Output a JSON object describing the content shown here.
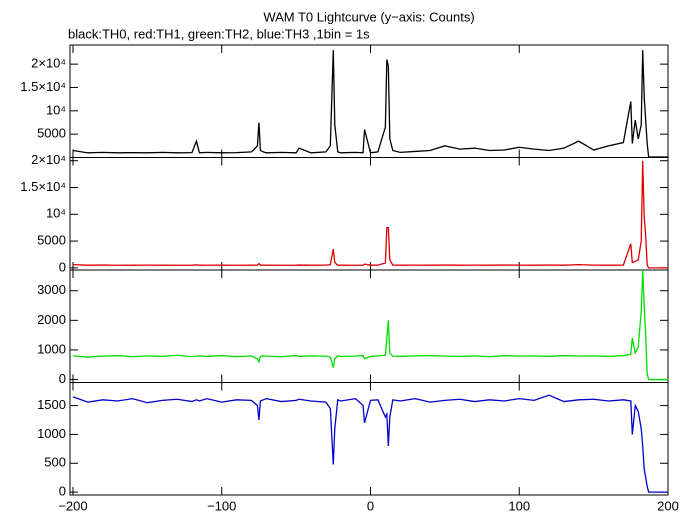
{
  "chart_data": [
    {
      "type": "line",
      "title": "WAM T0 Lightcurve (y−axis: Counts)",
      "subtitle": "black:TH0, red:TH1, green:TH2, blue:TH3 ,1bin = 1s",
      "series": [
        {
          "name": "TH0",
          "color": "#000000",
          "x": [
            -200,
            -190,
            -180,
            -170,
            -160,
            -150,
            -140,
            -130,
            -120,
            -117,
            -115,
            -110,
            -100,
            -90,
            -80,
            -76,
            -75,
            -74,
            -72,
            -70,
            -60,
            -50,
            -48,
            -40,
            -30,
            -27,
            -25,
            -24,
            -22,
            -20,
            -10,
            -5,
            -4,
            0,
            5,
            10,
            11,
            12,
            13,
            15,
            20,
            30,
            40,
            50,
            60,
            70,
            80,
            90,
            100,
            110,
            120,
            130,
            140,
            150,
            160,
            170,
            175,
            176,
            178,
            180,
            182,
            183,
            184,
            185,
            186,
            187,
            190,
            200
          ],
          "values": [
            1500,
            1000,
            1100,
            1000,
            1050,
            1000,
            1100,
            1000,
            1050,
            3500,
            1000,
            1100,
            1000,
            1050,
            1200,
            2500,
            7500,
            1500,
            1200,
            1000,
            1100,
            1000,
            2000,
            1000,
            1200,
            2500,
            23000,
            7000,
            1200,
            1000,
            1100,
            1000,
            6000,
            1000,
            1200,
            6500,
            21000,
            19500,
            4000,
            1500,
            1100,
            1300,
            1500,
            2500,
            1800,
            2000,
            1500,
            1600,
            2200,
            1800,
            1500,
            2000,
            3500,
            1600,
            2500,
            3200,
            12000,
            3000,
            8000,
            4000,
            7000,
            23000,
            13000,
            8000,
            3000,
            100,
            100,
            100
          ]
        }
      ],
      "xlim": [
        -202,
        200
      ],
      "ylim": [
        0,
        24100
      ],
      "yticks": [
        {
          "value": 5000,
          "label": "5000"
        },
        {
          "value": 10000,
          "label": "10⁴"
        },
        {
          "value": 15000,
          "label": "1.5×10⁴"
        },
        {
          "value": 20000,
          "label": "2×10⁴"
        }
      ]
    },
    {
      "type": "line",
      "series": [
        {
          "name": "TH1",
          "color": "#dd0000",
          "x": [
            -200,
            -190,
            -180,
            -170,
            -160,
            -150,
            -140,
            -130,
            -120,
            -117,
            -115,
            -110,
            -100,
            -90,
            -80,
            -76,
            -75,
            -74,
            -72,
            -70,
            -60,
            -50,
            -48,
            -40,
            -30,
            -27,
            -25,
            -24,
            -22,
            -20,
            -10,
            -5,
            -4,
            0,
            5,
            10,
            11,
            12,
            13,
            15,
            20,
            30,
            40,
            50,
            60,
            70,
            80,
            90,
            100,
            110,
            120,
            130,
            140,
            150,
            160,
            170,
            175,
            176,
            178,
            180,
            182,
            183,
            184,
            185,
            186,
            187,
            190,
            200
          ],
          "values": [
            600,
            500,
            520,
            480,
            500,
            510,
            500,
            490,
            500,
            550,
            500,
            510,
            500,
            490,
            500,
            520,
            800,
            500,
            510,
            500,
            490,
            500,
            520,
            500,
            510,
            600,
            3500,
            1000,
            500,
            510,
            490,
            500,
            700,
            500,
            510,
            900,
            7500,
            7500,
            1500,
            520,
            500,
            510,
            500,
            520,
            500,
            510,
            500,
            520,
            510,
            500,
            520,
            500,
            600,
            510,
            500,
            520,
            4500,
            1000,
            1200,
            1500,
            5000,
            20000,
            9500,
            6000,
            500,
            0,
            0,
            0
          ]
        }
      ],
      "xlim": [
        -202,
        200
      ],
      "ylim": [
        -400,
        20600
      ],
      "yticks": [
        0,
        5000,
        {
          "value": 10000,
          "label": "10⁴"
        },
        {
          "value": 15000,
          "label": "1.5×10⁴"
        },
        {
          "value": 20000,
          "label": "2×10⁴"
        }
      ]
    },
    {
      "type": "line",
      "series": [
        {
          "name": "TH2",
          "color": "#00dd00",
          "x": [
            -200,
            -190,
            -180,
            -170,
            -160,
            -150,
            -140,
            -130,
            -120,
            -117,
            -115,
            -110,
            -100,
            -90,
            -80,
            -76,
            -75,
            -74,
            -72,
            -70,
            -60,
            -50,
            -48,
            -40,
            -30,
            -27,
            -25,
            -24,
            -22,
            -20,
            -10,
            -5,
            -4,
            0,
            5,
            10,
            11,
            12,
            13,
            15,
            20,
            30,
            40,
            50,
            60,
            70,
            80,
            90,
            100,
            110,
            120,
            130,
            140,
            150,
            160,
            170,
            175,
            176,
            178,
            180,
            182,
            183,
            184,
            185,
            186,
            187,
            190,
            200
          ],
          "values": [
            800,
            760,
            790,
            810,
            770,
            800,
            780,
            820,
            770,
            790,
            800,
            780,
            810,
            770,
            800,
            700,
            600,
            780,
            800,
            790,
            770,
            810,
            780,
            800,
            790,
            760,
            400,
            700,
            800,
            780,
            790,
            810,
            700,
            780,
            800,
            820,
            1400,
            2000,
            900,
            790,
            780,
            800,
            810,
            790,
            780,
            800,
            770,
            810,
            790,
            800,
            780,
            810,
            790,
            800,
            780,
            810,
            850,
            1400,
            900,
            1100,
            2300,
            3700,
            2500,
            1500,
            200,
            0,
            0,
            0
          ]
        }
      ],
      "xlim": [
        -202,
        200
      ],
      "ylim": [
        -100,
        3700
      ],
      "yticks": [
        0,
        1000,
        2000,
        3000
      ]
    },
    {
      "type": "line",
      "series": [
        {
          "name": "TH3",
          "color": "#0000cc",
          "x": [
            -200,
            -190,
            -180,
            -170,
            -160,
            -150,
            -140,
            -130,
            -120,
            -117,
            -115,
            -110,
            -100,
            -90,
            -80,
            -76,
            -75,
            -74,
            -72,
            -70,
            -60,
            -50,
            -48,
            -40,
            -30,
            -27,
            -25,
            -24,
            -22,
            -20,
            -10,
            -5,
            -4,
            0,
            5,
            10,
            11,
            12,
            13,
            15,
            20,
            30,
            40,
            50,
            60,
            70,
            80,
            90,
            100,
            110,
            120,
            130,
            140,
            150,
            160,
            170,
            175,
            176,
            178,
            180,
            182,
            183,
            184,
            185,
            186,
            187,
            190,
            200
          ],
          "values": [
            1650,
            1560,
            1600,
            1580,
            1620,
            1550,
            1590,
            1610,
            1570,
            1600,
            1580,
            1620,
            1560,
            1600,
            1590,
            1500,
            1250,
            1580,
            1600,
            1620,
            1570,
            1590,
            1610,
            1580,
            1560,
            1450,
            480,
            1100,
            1600,
            1580,
            1620,
            1500,
            1200,
            1590,
            1600,
            1300,
            1350,
            800,
            1300,
            1600,
            1580,
            1620,
            1560,
            1590,
            1610,
            1570,
            1600,
            1580,
            1620,
            1590,
            1680,
            1570,
            1600,
            1610,
            1580,
            1600,
            1580,
            1000,
            1500,
            1400,
            1100,
            800,
            400,
            250,
            100,
            0,
            0,
            0
          ]
        }
      ],
      "xlim": [
        -202,
        200
      ],
      "ylim": [
        -50,
        1900
      ],
      "yticks": [
        0,
        500,
        1000,
        1500
      ],
      "xticks": [
        {
          "value": -200,
          "label": "−200"
        },
        {
          "value": -100,
          "label": "−100"
        },
        0,
        100,
        200
      ]
    }
  ]
}
